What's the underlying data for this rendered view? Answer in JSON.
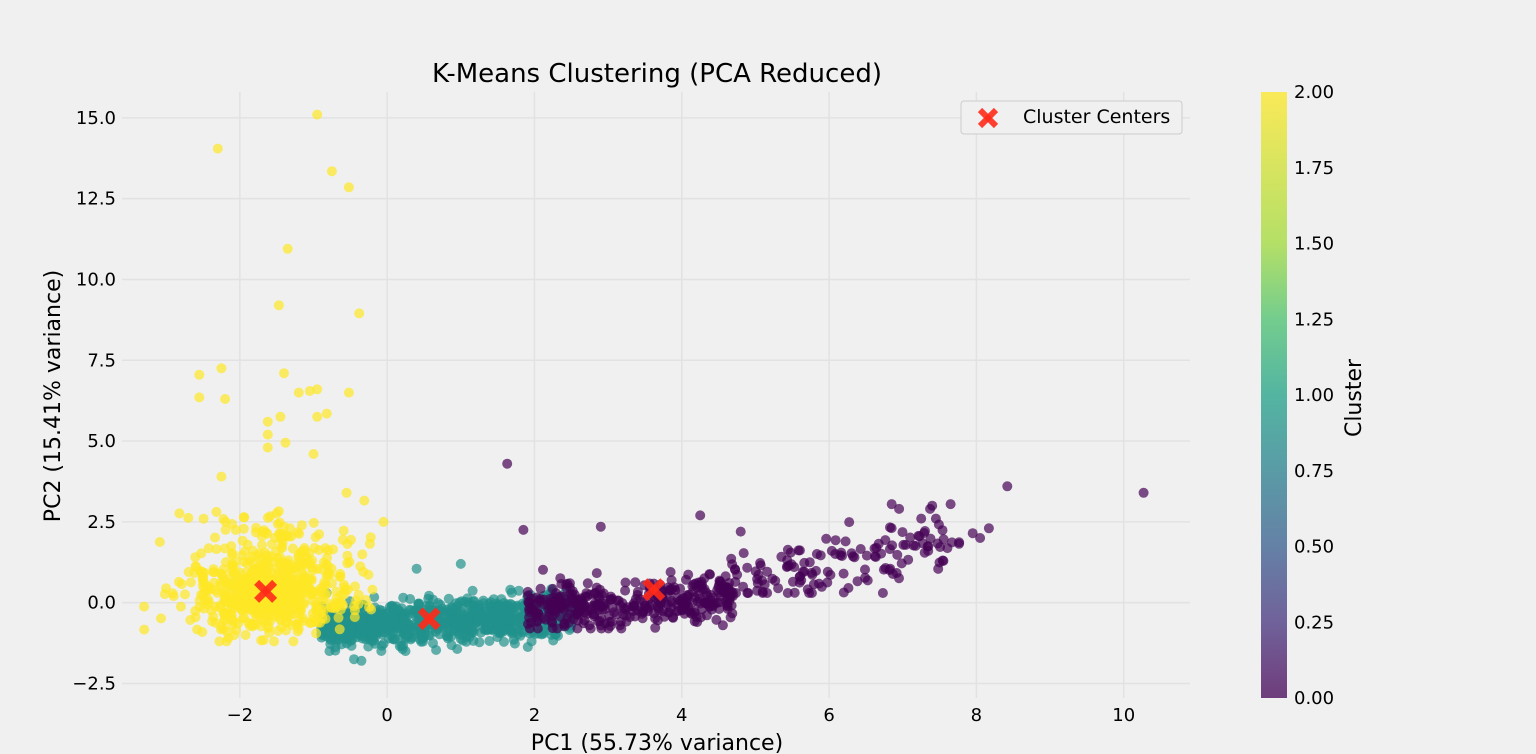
{
  "chart_data": {
    "type": "scatter",
    "title": "K-Means Clustering (PCA Reduced)",
    "xlabel": "PC1 (55.73% variance)",
    "ylabel": "PC2 (15.41% variance)",
    "xlim": [
      -3.6,
      10.9
    ],
    "ylim": [
      -2.95,
      15.8
    ],
    "xticks": [
      -2,
      0,
      2,
      4,
      6,
      8,
      10
    ],
    "xtick_labels": [
      "−2",
      "0",
      "2",
      "4",
      "6",
      "8",
      "10"
    ],
    "yticks": [
      -2.5,
      0.0,
      2.5,
      5.0,
      7.5,
      10.0,
      12.5,
      15.0
    ],
    "ytick_labels": [
      "−2.5",
      "0.0",
      "2.5",
      "5.0",
      "7.5",
      "10.0",
      "12.5",
      "15.0"
    ],
    "grid": true,
    "legend": {
      "placement": "top-right",
      "entries": [
        "Cluster Centers"
      ]
    },
    "colorbar": {
      "label": "Cluster",
      "range": [
        0.0,
        2.0
      ],
      "ticks": [
        "0.00",
        "0.25",
        "0.50",
        "0.75",
        "1.00",
        "1.25",
        "1.50",
        "1.75",
        "2.00"
      ],
      "colormap": "viridis"
    },
    "centers": [
      {
        "cluster": 2,
        "x": -1.65,
        "y": 0.35
      },
      {
        "cluster": 1,
        "x": 0.57,
        "y": -0.5
      },
      {
        "cluster": 0,
        "x": 3.62,
        "y": 0.4
      }
    ],
    "clusters": [
      {
        "cluster": 2,
        "color": "#fde725",
        "outliers": [
          [
            -2.3,
            14.05
          ],
          [
            -0.95,
            15.1
          ],
          [
            -0.75,
            13.35
          ],
          [
            -0.52,
            12.85
          ],
          [
            -1.35,
            10.95
          ],
          [
            -1.47,
            9.2
          ],
          [
            -0.38,
            8.95
          ],
          [
            -2.25,
            7.25
          ],
          [
            -2.55,
            7.05
          ],
          [
            -1.4,
            7.1
          ],
          [
            -2.2,
            6.3
          ],
          [
            -2.55,
            6.35
          ],
          [
            -1.2,
            6.5
          ],
          [
            -1.05,
            6.55
          ],
          [
            -0.95,
            6.6
          ],
          [
            -0.82,
            5.85
          ],
          [
            -0.52,
            6.5
          ],
          [
            -0.95,
            5.75
          ],
          [
            -1.45,
            5.75
          ],
          [
            -2.25,
            3.9
          ],
          [
            -1.0,
            4.6
          ],
          [
            -0.55,
            3.4
          ],
          [
            -0.05,
            2.5
          ],
          [
            -1.62,
            5.6
          ],
          [
            -1.62,
            5.2
          ],
          [
            -1.62,
            4.8
          ],
          [
            -1.38,
            4.95
          ]
        ]
      },
      {
        "cluster": 1,
        "color": "#21918c",
        "outliers": [
          [
            0.4,
            1.05
          ],
          [
            1.0,
            1.2
          ],
          [
            -0.35,
            -1.8
          ],
          [
            -0.45,
            -1.75
          ]
        ]
      },
      {
        "cluster": 0,
        "color": "#440154",
        "outliers": [
          [
            1.63,
            4.3
          ],
          [
            10.27,
            3.4
          ],
          [
            8.42,
            3.6
          ],
          [
            7.65,
            3.05
          ],
          [
            7.4,
            3.0
          ],
          [
            6.85,
            3.05
          ],
          [
            6.95,
            2.9
          ],
          [
            8.17,
            2.3
          ],
          [
            7.95,
            2.15
          ],
          [
            8.05,
            2.0
          ],
          [
            1.85,
            2.25
          ],
          [
            2.9,
            2.35
          ],
          [
            4.25,
            2.7
          ],
          [
            4.8,
            2.2
          ],
          [
            7.25,
            2.6
          ],
          [
            7.45,
            2.6
          ]
        ]
      }
    ]
  }
}
